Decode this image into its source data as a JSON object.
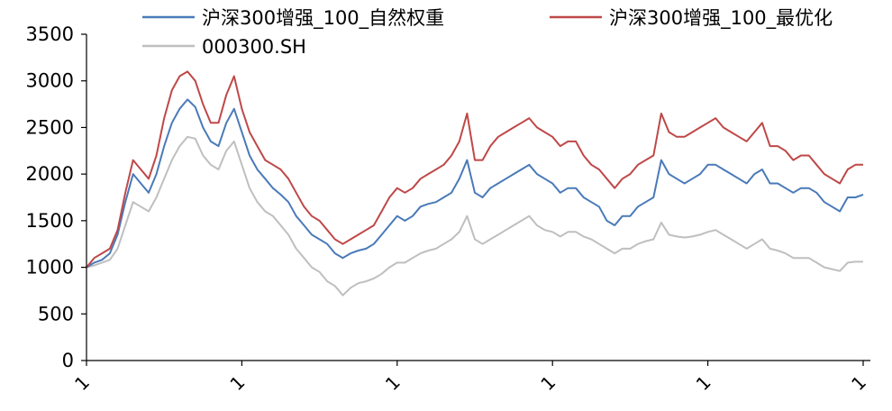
{
  "chart_data": {
    "type": "line",
    "title": "",
    "xlabel": "",
    "ylabel": "",
    "ylim": [
      0,
      3500
    ],
    "yticks": [
      0,
      500,
      1000,
      1500,
      2000,
      2500,
      3000,
      3500
    ],
    "xtick_labels": [
      "1",
      "1",
      "1",
      "1",
      "1",
      "1"
    ],
    "xlim": [
      0,
      100
    ],
    "xtick_positions": [
      0,
      20,
      40,
      60,
      80,
      100
    ],
    "grid": false,
    "legend": "top",
    "series": [
      {
        "name": "沪深300增强_100_自然权重",
        "color": "#4a7ab8",
        "points": [
          [
            0,
            1000
          ],
          [
            1,
            1050
          ],
          [
            2,
            1080
          ],
          [
            3,
            1150
          ],
          [
            4,
            1350
          ],
          [
            5,
            1700
          ],
          [
            6,
            2000
          ],
          [
            7,
            1900
          ],
          [
            8,
            1800
          ],
          [
            9,
            2000
          ],
          [
            10,
            2300
          ],
          [
            11,
            2550
          ],
          [
            12,
            2700
          ],
          [
            13,
            2800
          ],
          [
            14,
            2720
          ],
          [
            15,
            2500
          ],
          [
            16,
            2350
          ],
          [
            17,
            2300
          ],
          [
            18,
            2550
          ],
          [
            19,
            2700
          ],
          [
            20,
            2450
          ],
          [
            21,
            2200
          ],
          [
            22,
            2050
          ],
          [
            23,
            1950
          ],
          [
            24,
            1850
          ],
          [
            25,
            1780
          ],
          [
            26,
            1700
          ],
          [
            27,
            1550
          ],
          [
            28,
            1450
          ],
          [
            29,
            1350
          ],
          [
            30,
            1300
          ],
          [
            31,
            1250
          ],
          [
            32,
            1150
          ],
          [
            33,
            1100
          ],
          [
            34,
            1150
          ],
          [
            35,
            1180
          ],
          [
            36,
            1200
          ],
          [
            37,
            1250
          ],
          [
            38,
            1350
          ],
          [
            39,
            1450
          ],
          [
            40,
            1550
          ],
          [
            41,
            1500
          ],
          [
            42,
            1550
          ],
          [
            43,
            1650
          ],
          [
            44,
            1680
          ],
          [
            45,
            1700
          ],
          [
            46,
            1750
          ],
          [
            47,
            1800
          ],
          [
            48,
            1950
          ],
          [
            49,
            2150
          ],
          [
            50,
            1800
          ],
          [
            51,
            1750
          ],
          [
            52,
            1850
          ],
          [
            53,
            1900
          ],
          [
            54,
            1950
          ],
          [
            55,
            2000
          ],
          [
            56,
            2050
          ],
          [
            57,
            2100
          ],
          [
            58,
            2000
          ],
          [
            59,
            1950
          ],
          [
            60,
            1900
          ],
          [
            61,
            1800
          ],
          [
            62,
            1850
          ],
          [
            63,
            1850
          ],
          [
            64,
            1750
          ],
          [
            65,
            1700
          ],
          [
            66,
            1650
          ],
          [
            67,
            1500
          ],
          [
            68,
            1450
          ],
          [
            69,
            1550
          ],
          [
            70,
            1550
          ],
          [
            71,
            1650
          ],
          [
            72,
            1700
          ],
          [
            73,
            1750
          ],
          [
            74,
            2150
          ],
          [
            75,
            2000
          ],
          [
            76,
            1950
          ],
          [
            77,
            1900
          ],
          [
            78,
            1950
          ],
          [
            79,
            2000
          ],
          [
            80,
            2100
          ],
          [
            81,
            2100
          ],
          [
            82,
            2050
          ],
          [
            83,
            2000
          ],
          [
            84,
            1950
          ],
          [
            85,
            1900
          ],
          [
            86,
            2000
          ],
          [
            87,
            2050
          ],
          [
            88,
            1900
          ],
          [
            89,
            1900
          ],
          [
            90,
            1850
          ],
          [
            91,
            1800
          ],
          [
            92,
            1850
          ],
          [
            93,
            1850
          ],
          [
            94,
            1800
          ],
          [
            95,
            1700
          ],
          [
            96,
            1650
          ],
          [
            97,
            1600
          ],
          [
            98,
            1750
          ],
          [
            99,
            1750
          ],
          [
            100,
            1780
          ]
        ]
      },
      {
        "name": "沪深300增强_100_最优化",
        "color": "#bf4848",
        "points": [
          [
            0,
            1000
          ],
          [
            1,
            1100
          ],
          [
            2,
            1150
          ],
          [
            3,
            1200
          ],
          [
            4,
            1400
          ],
          [
            5,
            1800
          ],
          [
            6,
            2150
          ],
          [
            7,
            2050
          ],
          [
            8,
            1950
          ],
          [
            9,
            2200
          ],
          [
            10,
            2600
          ],
          [
            11,
            2900
          ],
          [
            12,
            3050
          ],
          [
            13,
            3100
          ],
          [
            14,
            3000
          ],
          [
            15,
            2750
          ],
          [
            16,
            2550
          ],
          [
            17,
            2550
          ],
          [
            18,
            2850
          ],
          [
            19,
            3050
          ],
          [
            20,
            2700
          ],
          [
            21,
            2450
          ],
          [
            22,
            2300
          ],
          [
            23,
            2150
          ],
          [
            24,
            2100
          ],
          [
            25,
            2050
          ],
          [
            26,
            1950
          ],
          [
            27,
            1800
          ],
          [
            28,
            1650
          ],
          [
            29,
            1550
          ],
          [
            30,
            1500
          ],
          [
            31,
            1400
          ],
          [
            32,
            1300
          ],
          [
            33,
            1250
          ],
          [
            34,
            1300
          ],
          [
            35,
            1350
          ],
          [
            36,
            1400
          ],
          [
            37,
            1450
          ],
          [
            38,
            1600
          ],
          [
            39,
            1750
          ],
          [
            40,
            1850
          ],
          [
            41,
            1800
          ],
          [
            42,
            1850
          ],
          [
            43,
            1950
          ],
          [
            44,
            2000
          ],
          [
            45,
            2050
          ],
          [
            46,
            2100
          ],
          [
            47,
            2200
          ],
          [
            48,
            2350
          ],
          [
            49,
            2650
          ],
          [
            50,
            2150
          ],
          [
            51,
            2150
          ],
          [
            52,
            2300
          ],
          [
            53,
            2400
          ],
          [
            54,
            2450
          ],
          [
            55,
            2500
          ],
          [
            56,
            2550
          ],
          [
            57,
            2600
          ],
          [
            58,
            2500
          ],
          [
            59,
            2450
          ],
          [
            60,
            2400
          ],
          [
            61,
            2300
          ],
          [
            62,
            2350
          ],
          [
            63,
            2350
          ],
          [
            64,
            2200
          ],
          [
            65,
            2100
          ],
          [
            66,
            2050
          ],
          [
            67,
            1950
          ],
          [
            68,
            1850
          ],
          [
            69,
            1950
          ],
          [
            70,
            2000
          ],
          [
            71,
            2100
          ],
          [
            72,
            2150
          ],
          [
            73,
            2200
          ],
          [
            74,
            2650
          ],
          [
            75,
            2450
          ],
          [
            76,
            2400
          ],
          [
            77,
            2400
          ],
          [
            78,
            2450
          ],
          [
            79,
            2500
          ],
          [
            80,
            2550
          ],
          [
            81,
            2600
          ],
          [
            82,
            2500
          ],
          [
            83,
            2450
          ],
          [
            84,
            2400
          ],
          [
            85,
            2350
          ],
          [
            86,
            2450
          ],
          [
            87,
            2550
          ],
          [
            88,
            2300
          ],
          [
            89,
            2300
          ],
          [
            90,
            2250
          ],
          [
            91,
            2150
          ],
          [
            92,
            2200
          ],
          [
            93,
            2200
          ],
          [
            94,
            2100
          ],
          [
            95,
            2000
          ],
          [
            96,
            1950
          ],
          [
            97,
            1900
          ],
          [
            98,
            2050
          ],
          [
            99,
            2100
          ],
          [
            100,
            2100
          ]
        ]
      },
      {
        "name": "000300.SH",
        "color": "#bfbfbf",
        "points": [
          [
            0,
            1000
          ],
          [
            1,
            1020
          ],
          [
            2,
            1050
          ],
          [
            3,
            1080
          ],
          [
            4,
            1200
          ],
          [
            5,
            1450
          ],
          [
            6,
            1700
          ],
          [
            7,
            1650
          ],
          [
            8,
            1600
          ],
          [
            9,
            1750
          ],
          [
            10,
            1950
          ],
          [
            11,
            2150
          ],
          [
            12,
            2300
          ],
          [
            13,
            2400
          ],
          [
            14,
            2380
          ],
          [
            15,
            2200
          ],
          [
            16,
            2100
          ],
          [
            17,
            2050
          ],
          [
            18,
            2250
          ],
          [
            19,
            2350
          ],
          [
            20,
            2100
          ],
          [
            21,
            1850
          ],
          [
            22,
            1700
          ],
          [
            23,
            1600
          ],
          [
            24,
            1550
          ],
          [
            25,
            1450
          ],
          [
            26,
            1350
          ],
          [
            27,
            1200
          ],
          [
            28,
            1100
          ],
          [
            29,
            1000
          ],
          [
            30,
            950
          ],
          [
            31,
            850
          ],
          [
            32,
            800
          ],
          [
            33,
            700
          ],
          [
            34,
            780
          ],
          [
            35,
            830
          ],
          [
            36,
            850
          ],
          [
            37,
            880
          ],
          [
            38,
            930
          ],
          [
            39,
            1000
          ],
          [
            40,
            1050
          ],
          [
            41,
            1050
          ],
          [
            42,
            1100
          ],
          [
            43,
            1150
          ],
          [
            44,
            1180
          ],
          [
            45,
            1200
          ],
          [
            46,
            1250
          ],
          [
            47,
            1300
          ],
          [
            48,
            1380
          ],
          [
            49,
            1550
          ],
          [
            50,
            1300
          ],
          [
            51,
            1250
          ],
          [
            52,
            1300
          ],
          [
            53,
            1350
          ],
          [
            54,
            1400
          ],
          [
            55,
            1450
          ],
          [
            56,
            1500
          ],
          [
            57,
            1550
          ],
          [
            58,
            1450
          ],
          [
            59,
            1400
          ],
          [
            60,
            1380
          ],
          [
            61,
            1330
          ],
          [
            62,
            1380
          ],
          [
            63,
            1380
          ],
          [
            64,
            1330
          ],
          [
            65,
            1300
          ],
          [
            66,
            1250
          ],
          [
            67,
            1200
          ],
          [
            68,
            1150
          ],
          [
            69,
            1200
          ],
          [
            70,
            1200
          ],
          [
            71,
            1250
          ],
          [
            72,
            1280
          ],
          [
            73,
            1300
          ],
          [
            74,
            1480
          ],
          [
            75,
            1350
          ],
          [
            76,
            1330
          ],
          [
            77,
            1320
          ],
          [
            78,
            1330
          ],
          [
            79,
            1350
          ],
          [
            80,
            1380
          ],
          [
            81,
            1400
          ],
          [
            82,
            1350
          ],
          [
            83,
            1300
          ],
          [
            84,
            1250
          ],
          [
            85,
            1200
          ],
          [
            86,
            1250
          ],
          [
            87,
            1300
          ],
          [
            88,
            1200
          ],
          [
            89,
            1180
          ],
          [
            90,
            1150
          ],
          [
            91,
            1100
          ],
          [
            92,
            1100
          ],
          [
            93,
            1100
          ],
          [
            94,
            1050
          ],
          [
            95,
            1000
          ],
          [
            96,
            980
          ],
          [
            97,
            960
          ],
          [
            98,
            1050
          ],
          [
            99,
            1060
          ],
          [
            100,
            1060
          ]
        ]
      }
    ]
  }
}
